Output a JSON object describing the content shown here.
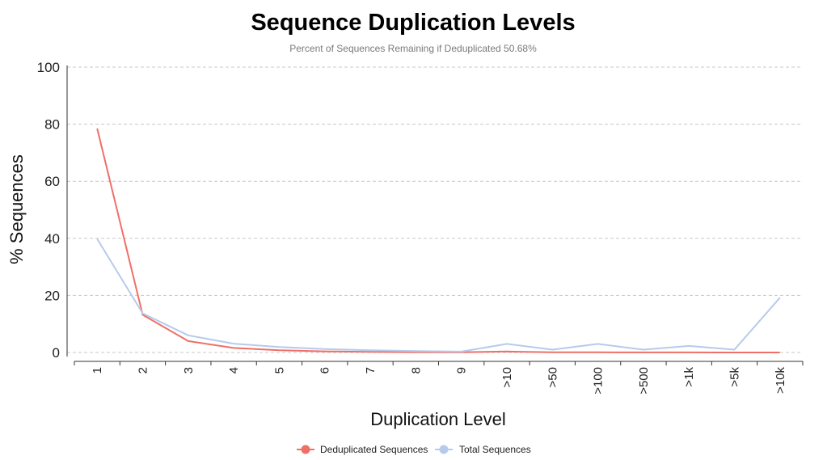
{
  "chart_data": {
    "type": "line",
    "title": "Sequence Duplication Levels",
    "subtitle": "Percent of Sequences Remaining if Deduplicated 50.68%",
    "xlabel": "Duplication Level",
    "ylabel": "% Sequences",
    "categories": [
      "1",
      "2",
      "3",
      "4",
      "5",
      "6",
      "7",
      "8",
      "9",
      ">10",
      ">50",
      ">100",
      ">500",
      ">1k",
      ">5k",
      ">10k"
    ],
    "ylim": [
      0,
      100
    ],
    "yticks": [
      0,
      20,
      40,
      60,
      80,
      100
    ],
    "grid": true,
    "legend_position": "bottom",
    "series": [
      {
        "name": "Deduplicated Sequences",
        "color": "#ef6f67",
        "values": [
          78.5,
          13.2,
          4.0,
          1.6,
          0.8,
          0.4,
          0.2,
          0.1,
          0.05,
          0.35,
          0.05,
          0.05,
          0.02,
          0.02,
          0.01,
          0.01
        ]
      },
      {
        "name": "Total Sequences",
        "color": "#b7caec",
        "values": [
          39.8,
          13.7,
          6.0,
          3.1,
          1.9,
          1.2,
          0.8,
          0.5,
          0.3,
          3.0,
          1.0,
          3.0,
          1.0,
          2.3,
          1.0,
          19.2
        ]
      }
    ]
  }
}
